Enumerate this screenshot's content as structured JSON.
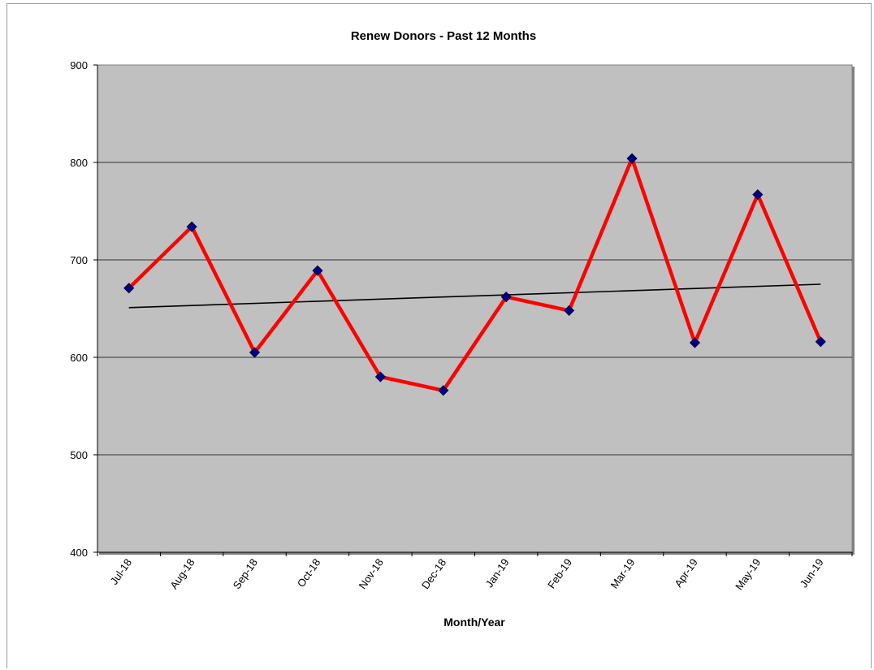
{
  "chart_data": {
    "type": "line",
    "title": "Renew Donors - Past 12 Months",
    "xlabel": "Month/Year",
    "ylabel": "",
    "categories": [
      "Jul-18",
      "Aug-18",
      "Sep-18",
      "Oct-18",
      "Nov-18",
      "Dec-18",
      "Jan-19",
      "Feb-19",
      "Mar-19",
      "Apr-19",
      "May-19",
      "Jun-19"
    ],
    "series": [
      {
        "values": [
          671,
          734,
          605,
          689,
          580,
          566,
          662,
          648,
          804,
          615,
          767,
          616
        ],
        "color": "#ff0000",
        "marker_color": "#000080"
      }
    ],
    "trendline": {
      "type": "linear",
      "start": 651,
      "end": 675,
      "color": "#000000"
    },
    "ylim": [
      400,
      900
    ],
    "yticks": [
      "400",
      "500",
      "600",
      "700",
      "800",
      "900"
    ],
    "grid": true,
    "legend": "none",
    "plot_background": "#c0c0c0"
  }
}
